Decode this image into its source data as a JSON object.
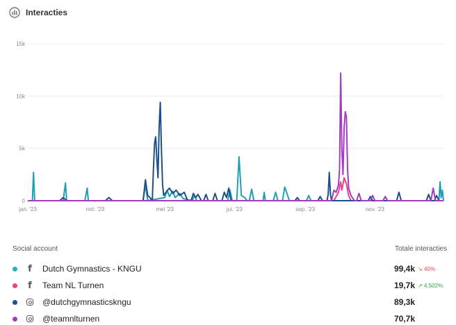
{
  "header": {
    "title": "Interacties",
    "icon": "chart-circle-icon"
  },
  "chart_data": {
    "type": "line",
    "ylim": [
      0,
      15000
    ],
    "yticks": [
      0,
      5000,
      10000,
      15000
    ],
    "ytick_labels": [
      "0",
      "5k",
      "10k",
      "15k"
    ],
    "x_range": [
      "2023-01-01",
      "2023-12-31"
    ],
    "xticks": [
      "2023-01-01",
      "2023-03-01",
      "2023-05-01",
      "2023-07-01",
      "2023-09-01",
      "2023-11-01"
    ],
    "xtick_labels": [
      "jan. '23",
      "mrt. '23",
      "mei '23",
      "jul. '23",
      "sep. '23",
      "nov. '23"
    ],
    "grid": true,
    "series": [
      {
        "color": "#1f9fb3",
        "points": [
          [
            "2023-01-05",
            0
          ],
          [
            "2023-01-06",
            2700
          ],
          [
            "2023-01-07",
            0
          ],
          [
            "2023-02-01",
            0
          ],
          [
            "2023-02-03",
            1700
          ],
          [
            "2023-02-04",
            0
          ],
          [
            "2023-02-20",
            0
          ],
          [
            "2023-02-22",
            1200
          ],
          [
            "2023-02-23",
            0
          ],
          [
            "2023-04-12",
            0
          ],
          [
            "2023-04-14",
            1500
          ],
          [
            "2023-04-16",
            0
          ],
          [
            "2023-05-01",
            300
          ],
          [
            "2023-05-03",
            1000
          ],
          [
            "2023-05-05",
            400
          ],
          [
            "2023-05-08",
            900
          ],
          [
            "2023-05-10",
            300
          ],
          [
            "2023-05-14",
            700
          ],
          [
            "2023-05-17",
            200
          ],
          [
            "2023-05-25",
            0
          ],
          [
            "2023-05-27",
            500
          ],
          [
            "2023-05-29",
            0
          ],
          [
            "2023-06-25",
            0
          ],
          [
            "2023-06-27",
            1000
          ],
          [
            "2023-06-29",
            0
          ],
          [
            "2023-07-03",
            0
          ],
          [
            "2023-07-05",
            4200
          ],
          [
            "2023-07-07",
            500
          ],
          [
            "2023-07-10",
            300
          ],
          [
            "2023-07-12",
            0
          ],
          [
            "2023-07-14",
            0
          ],
          [
            "2023-07-16",
            1100
          ],
          [
            "2023-07-18",
            0
          ],
          [
            "2023-07-26",
            0
          ],
          [
            "2023-07-27",
            800
          ],
          [
            "2023-07-28",
            0
          ],
          [
            "2023-08-04",
            0
          ],
          [
            "2023-08-06",
            800
          ],
          [
            "2023-08-08",
            0
          ],
          [
            "2023-08-12",
            0
          ],
          [
            "2023-08-14",
            1300
          ],
          [
            "2023-08-16",
            700
          ],
          [
            "2023-08-18",
            0
          ],
          [
            "2023-09-02",
            0
          ],
          [
            "2023-09-04",
            500
          ],
          [
            "2023-09-06",
            0
          ],
          [
            "2023-12-27",
            0
          ],
          [
            "2023-12-28",
            1800
          ],
          [
            "2023-12-29",
            300
          ],
          [
            "2023-12-30",
            1000
          ],
          [
            "2023-12-31",
            0
          ]
        ]
      },
      {
        "color": "#e8428c",
        "points": [
          [
            "2023-09-26",
            0
          ],
          [
            "2023-09-30",
            800
          ],
          [
            "2023-10-02",
            1800
          ],
          [
            "2023-10-03",
            1000
          ],
          [
            "2023-10-05",
            2200
          ],
          [
            "2023-10-07",
            1600
          ],
          [
            "2023-10-09",
            500
          ],
          [
            "2023-10-11",
            0
          ]
        ]
      },
      {
        "color": "#1c4f8a",
        "points": [
          [
            "2023-01-01",
            0
          ],
          [
            "2023-01-29",
            0
          ],
          [
            "2023-02-01",
            300
          ],
          [
            "2023-02-04",
            0
          ],
          [
            "2023-03-10",
            0
          ],
          [
            "2023-03-13",
            300
          ],
          [
            "2023-03-16",
            0
          ],
          [
            "2023-04-12",
            0
          ],
          [
            "2023-04-14",
            2000
          ],
          [
            "2023-04-16",
            500
          ],
          [
            "2023-04-18",
            300
          ],
          [
            "2023-04-20",
            0
          ],
          [
            "2023-04-21",
            3000
          ],
          [
            "2023-04-22",
            5500
          ],
          [
            "2023-04-23",
            6100
          ],
          [
            "2023-04-24",
            4000
          ],
          [
            "2023-04-25",
            2200
          ],
          [
            "2023-04-26",
            7000
          ],
          [
            "2023-04-27",
            9400
          ],
          [
            "2023-04-28",
            5000
          ],
          [
            "2023-04-29",
            1500
          ],
          [
            "2023-04-30",
            500
          ],
          [
            "2023-05-02",
            800
          ],
          [
            "2023-05-05",
            1200
          ],
          [
            "2023-05-08",
            700
          ],
          [
            "2023-05-11",
            1000
          ],
          [
            "2023-05-14",
            500
          ],
          [
            "2023-05-18",
            800
          ],
          [
            "2023-05-21",
            0
          ],
          [
            "2023-05-24",
            0
          ],
          [
            "2023-05-26",
            700
          ],
          [
            "2023-05-28",
            300
          ],
          [
            "2023-05-30",
            600
          ],
          [
            "2023-06-02",
            0
          ],
          [
            "2023-06-04",
            0
          ],
          [
            "2023-06-06",
            600
          ],
          [
            "2023-06-08",
            0
          ],
          [
            "2023-06-12",
            0
          ],
          [
            "2023-06-14",
            700
          ],
          [
            "2023-06-16",
            0
          ],
          [
            "2023-06-20",
            0
          ],
          [
            "2023-06-22",
            800
          ],
          [
            "2023-06-24",
            300
          ],
          [
            "2023-06-26",
            1200
          ],
          [
            "2023-06-28",
            0
          ],
          [
            "2023-08-23",
            0
          ],
          [
            "2023-08-25",
            300
          ],
          [
            "2023-08-27",
            0
          ],
          [
            "2023-09-12",
            0
          ],
          [
            "2023-09-14",
            400
          ],
          [
            "2023-09-16",
            0
          ],
          [
            "2023-09-20",
            0
          ],
          [
            "2023-09-21",
            600
          ],
          [
            "2023-09-22",
            2700
          ],
          [
            "2023-09-23",
            600
          ],
          [
            "2023-09-24",
            0
          ],
          [
            "2023-10-26",
            0
          ],
          [
            "2023-10-28",
            400
          ],
          [
            "2023-10-30",
            0
          ],
          [
            "2023-11-20",
            0
          ],
          [
            "2023-11-22",
            800
          ],
          [
            "2023-11-24",
            0
          ],
          [
            "2023-12-16",
            0
          ],
          [
            "2023-12-18",
            600
          ],
          [
            "2023-12-20",
            0
          ],
          [
            "2023-12-23",
            0
          ],
          [
            "2023-12-25",
            500
          ],
          [
            "2023-12-27",
            0
          ]
        ]
      },
      {
        "color": "#a23dbd",
        "points": [
          [
            "2023-09-24",
            0
          ],
          [
            "2023-09-26",
            1000
          ],
          [
            "2023-09-28",
            800
          ],
          [
            "2023-09-30",
            1500
          ],
          [
            "2023-10-01",
            3000
          ],
          [
            "2023-10-02",
            12200
          ],
          [
            "2023-10-03",
            5000
          ],
          [
            "2023-10-04",
            2500
          ],
          [
            "2023-10-05",
            7000
          ],
          [
            "2023-10-06",
            8500
          ],
          [
            "2023-10-07",
            8000
          ],
          [
            "2023-10-08",
            3000
          ],
          [
            "2023-10-09",
            1200
          ],
          [
            "2023-10-11",
            500
          ],
          [
            "2023-10-14",
            0
          ],
          [
            "2023-10-16",
            0
          ],
          [
            "2023-10-18",
            700
          ],
          [
            "2023-10-20",
            0
          ],
          [
            "2023-10-28",
            0
          ],
          [
            "2023-10-30",
            500
          ],
          [
            "2023-11-01",
            0
          ],
          [
            "2023-11-08",
            0
          ],
          [
            "2023-11-10",
            400
          ],
          [
            "2023-11-12",
            0
          ],
          [
            "2023-12-20",
            0
          ],
          [
            "2023-12-22",
            1200
          ],
          [
            "2023-12-24",
            0
          ]
        ]
      }
    ]
  },
  "table": {
    "col_account": "Social account",
    "col_total": "Totale interacties",
    "rows": [
      {
        "name": "Dutch Gymnastics - KNGU",
        "network": "facebook-icon",
        "net_glyph": "f",
        "dot_color": "#1fb5c0",
        "total": "99,4k",
        "change": "↘ 40%",
        "change_color": "#e5484d"
      },
      {
        "name": "Team NL Turnen",
        "network": "facebook-icon",
        "net_glyph": "f",
        "dot_color": "#e8428c",
        "total": "19,7k",
        "change": "↗ 4.502%",
        "change_color": "#2fa84f"
      },
      {
        "name": "@dutchgymnasticskngu",
        "network": "instagram-icon",
        "net_glyph": "",
        "dot_color": "#1c4f8a",
        "total": "89,3k",
        "change": "",
        "change_color": "#333"
      },
      {
        "name": "@teamnlturnen",
        "network": "instagram-icon",
        "net_glyph": "",
        "dot_color": "#a23dbd",
        "total": "70,7k",
        "change": "",
        "change_color": "#333"
      }
    ]
  }
}
